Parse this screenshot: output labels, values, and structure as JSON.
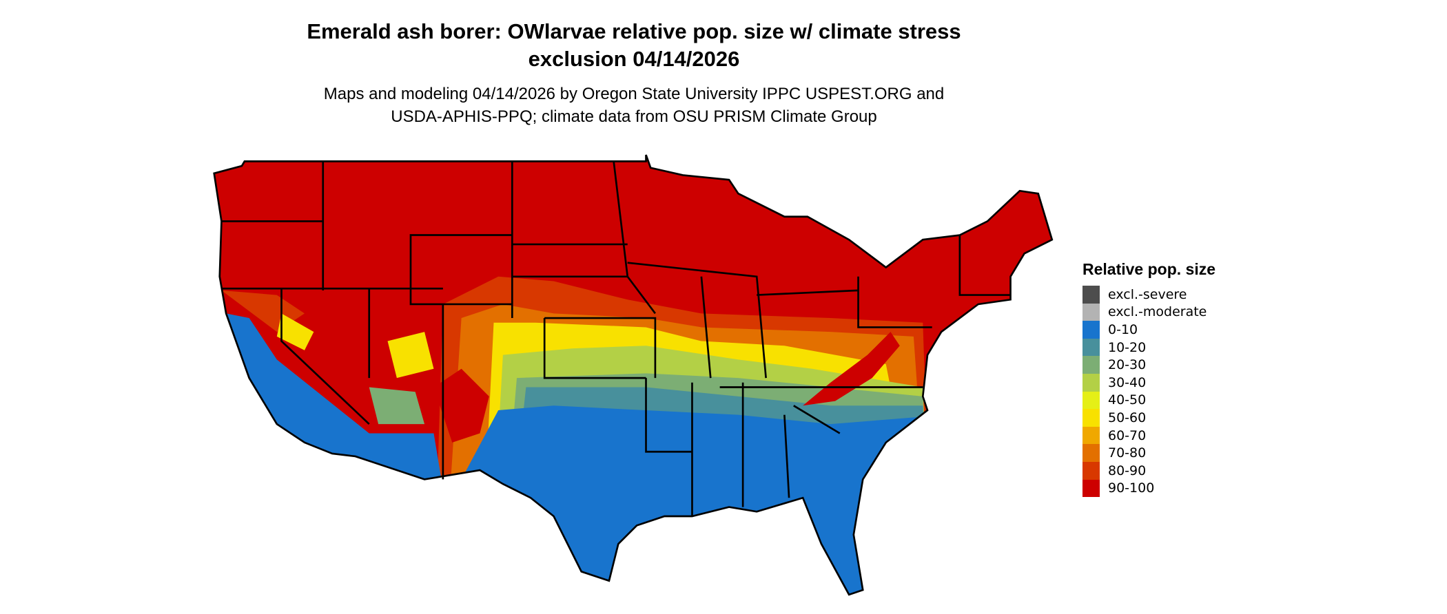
{
  "title_line1": "Emerald ash borer: OWlarvae relative pop. size w/ climate stress",
  "title_line2": "exclusion 04/14/2026",
  "subtitle_line1": "Maps and modeling 04/14/2026 by Oregon State University IPPC USPEST.ORG and",
  "subtitle_line2": "USDA-APHIS-PPQ; climate data from OSU PRISM Climate Group",
  "legend": {
    "title": "Relative pop. size",
    "items": [
      {
        "label": "excl.-severe",
        "color": "#4d4d4d"
      },
      {
        "label": "excl.-moderate",
        "color": "#b3b3b3"
      },
      {
        "label": "0-10",
        "color": "#1874cd"
      },
      {
        "label": "10-20",
        "color": "#48909c"
      },
      {
        "label": "20-30",
        "color": "#7cae74"
      },
      {
        "label": "30-40",
        "color": "#b3d046"
      },
      {
        "label": "40-50",
        "color": "#e5ef17"
      },
      {
        "label": "50-60",
        "color": "#f8e100"
      },
      {
        "label": "60-70",
        "color": "#f0a800"
      },
      {
        "label": "70-80",
        "color": "#e37000"
      },
      {
        "label": "80-90",
        "color": "#d83800"
      },
      {
        "label": "90-100",
        "color": "#cd0000"
      }
    ]
  },
  "map": {
    "region": "Contiguous United States",
    "pattern": "90-100 across the north, decreasing southward to 0-10 across the South, California coast and Southwest deserts"
  }
}
